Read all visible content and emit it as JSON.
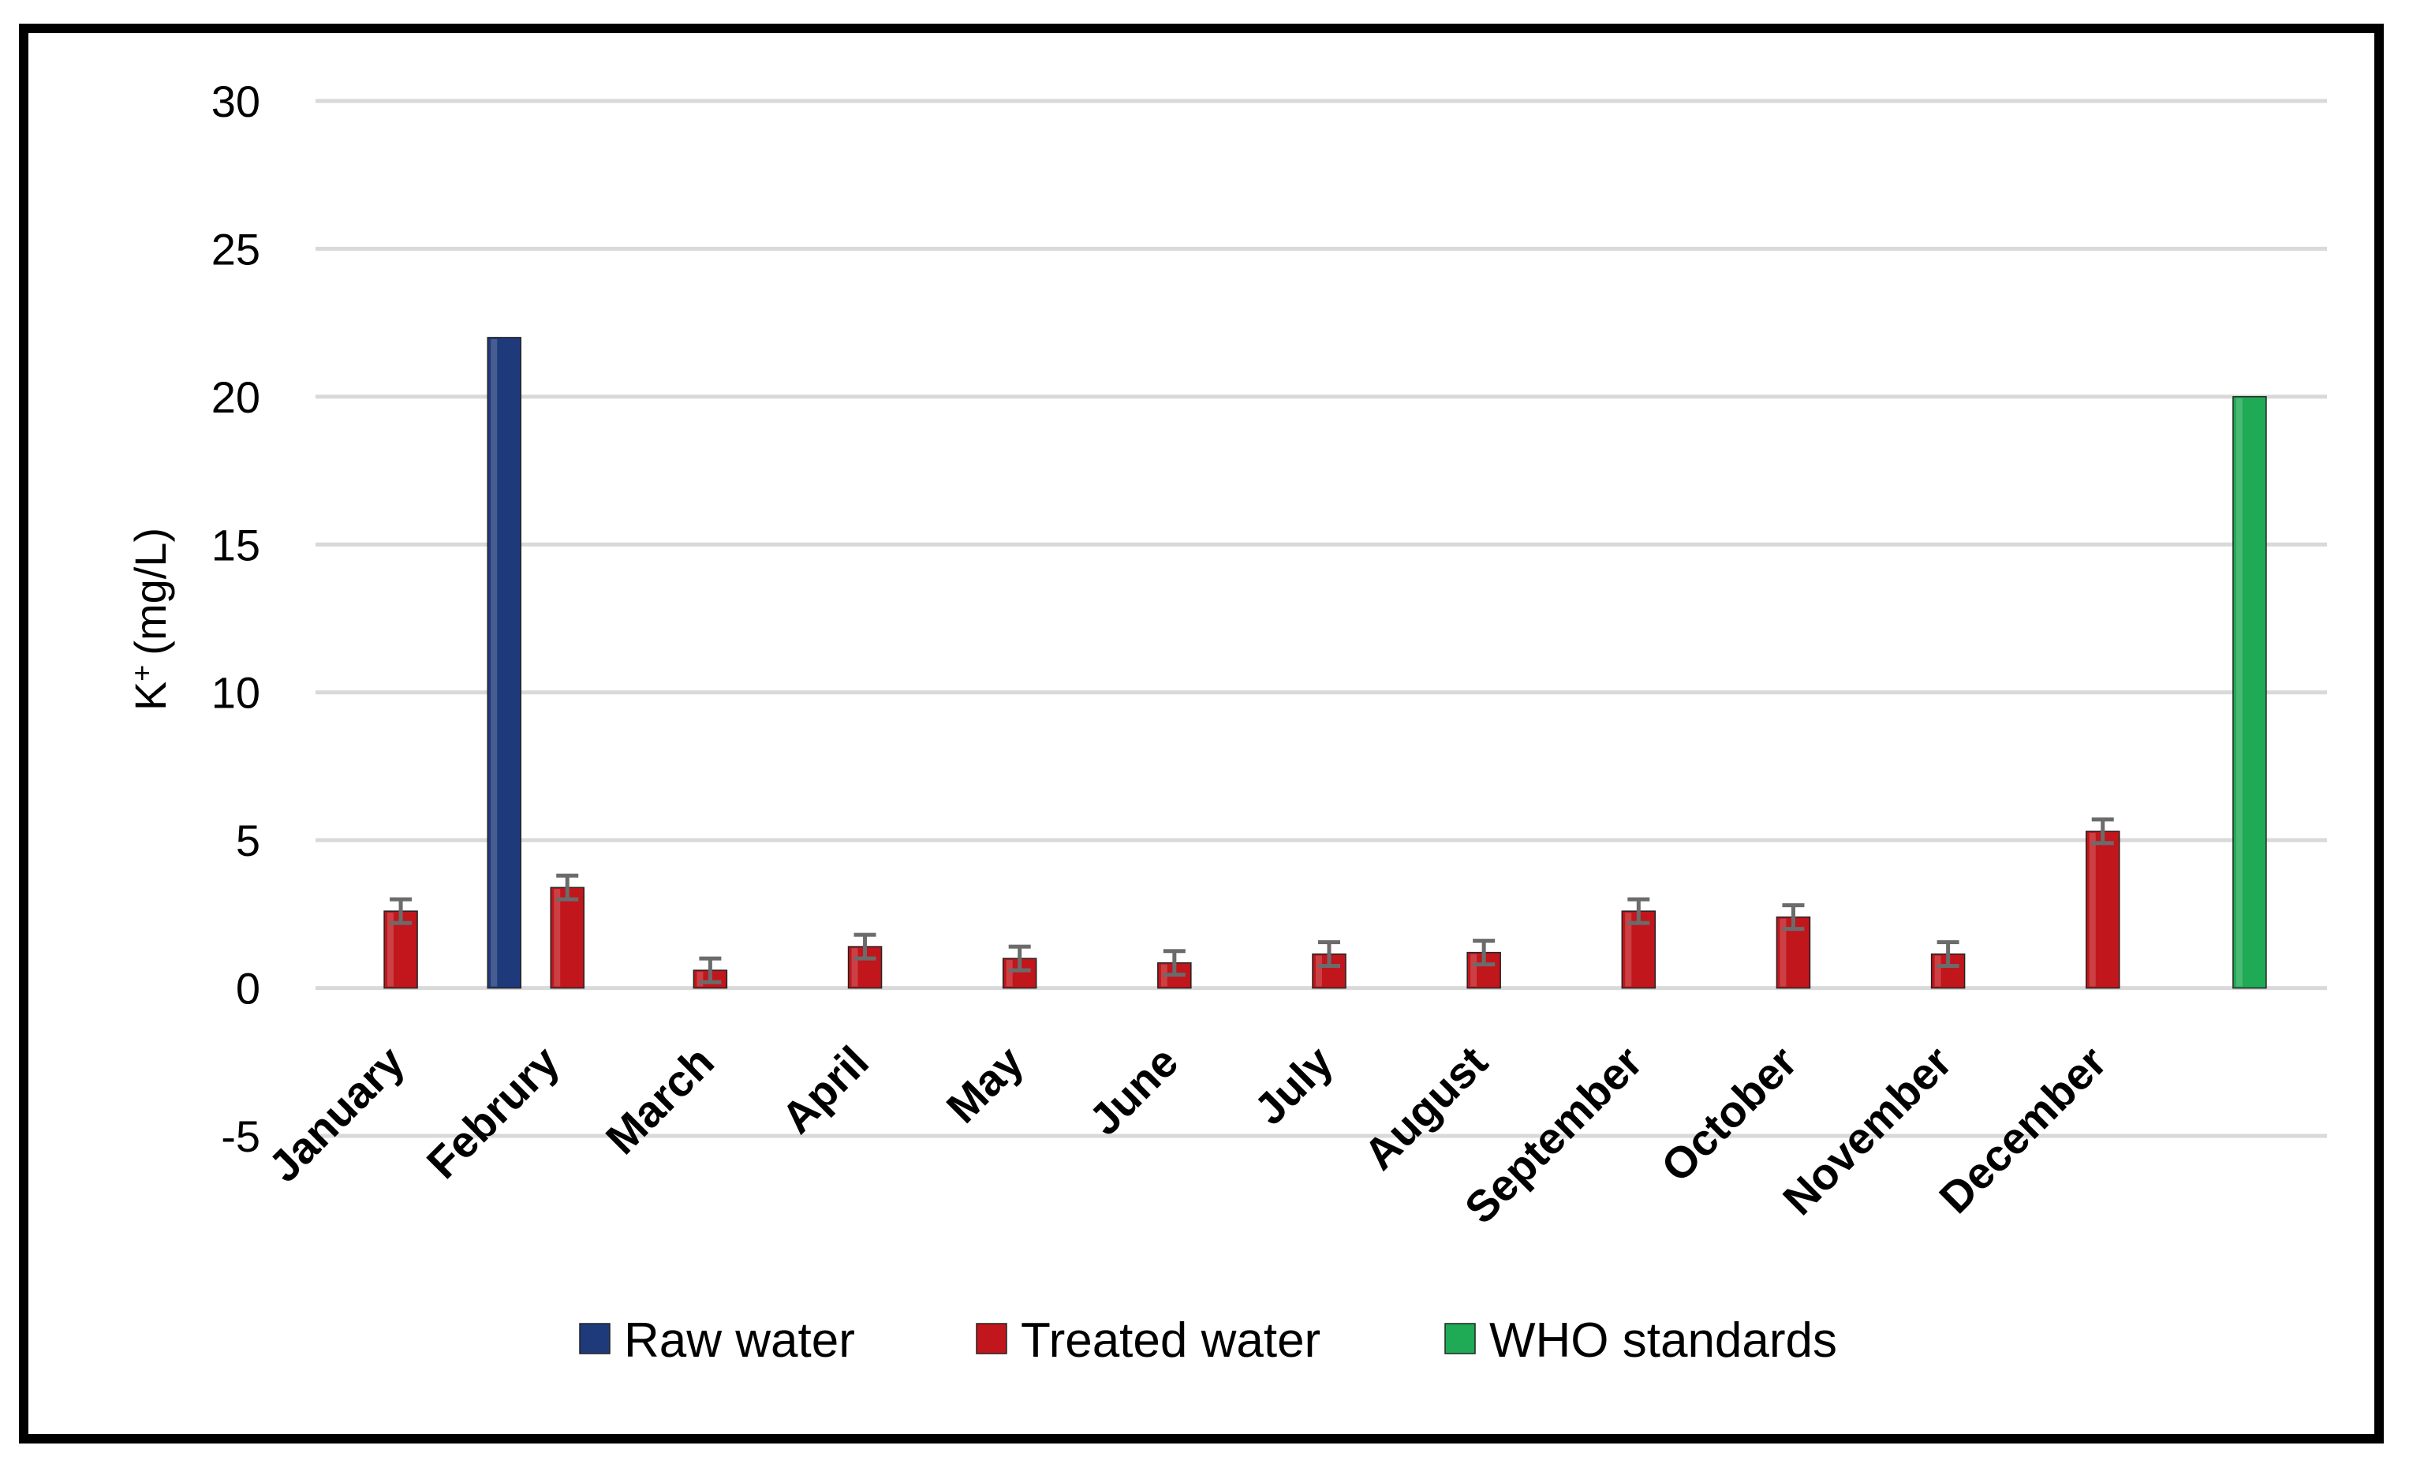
{
  "chart_data": {
    "type": "bar",
    "title": "",
    "xlabel": "",
    "ylabel": "(mg/L)",
    "ylabel_ion": "K",
    "ylabel_charge": "+",
    "ylim": [
      -5,
      30
    ],
    "yticks": [
      -5,
      0,
      5,
      10,
      15,
      20,
      25,
      30
    ],
    "grid": true,
    "legend_position": "bottom",
    "categories": [
      "January",
      "Februry",
      "March",
      "April",
      "May",
      "June",
      "July",
      "August",
      "September",
      "October",
      "November",
      "December",
      ""
    ],
    "series": [
      {
        "name": "Raw water",
        "color": "#1f3a7a",
        "values": [
          null,
          22,
          null,
          null,
          null,
          null,
          null,
          null,
          null,
          null,
          null,
          null,
          null
        ]
      },
      {
        "name": "Treated water",
        "color": "#c0161c",
        "values": [
          2.6,
          3.4,
          0.6,
          1.4,
          1.0,
          0.85,
          1.15,
          1.2,
          2.6,
          2.4,
          1.15,
          5.3,
          null
        ],
        "errors": [
          0.4,
          0.4,
          0.4,
          0.4,
          0.4,
          0.4,
          0.4,
          0.4,
          0.4,
          0.4,
          0.4,
          0.4,
          null
        ]
      },
      {
        "name": "WHO standards",
        "color": "#1faa55",
        "values": [
          null,
          null,
          null,
          null,
          null,
          null,
          null,
          null,
          null,
          null,
          null,
          null,
          20
        ]
      }
    ]
  }
}
